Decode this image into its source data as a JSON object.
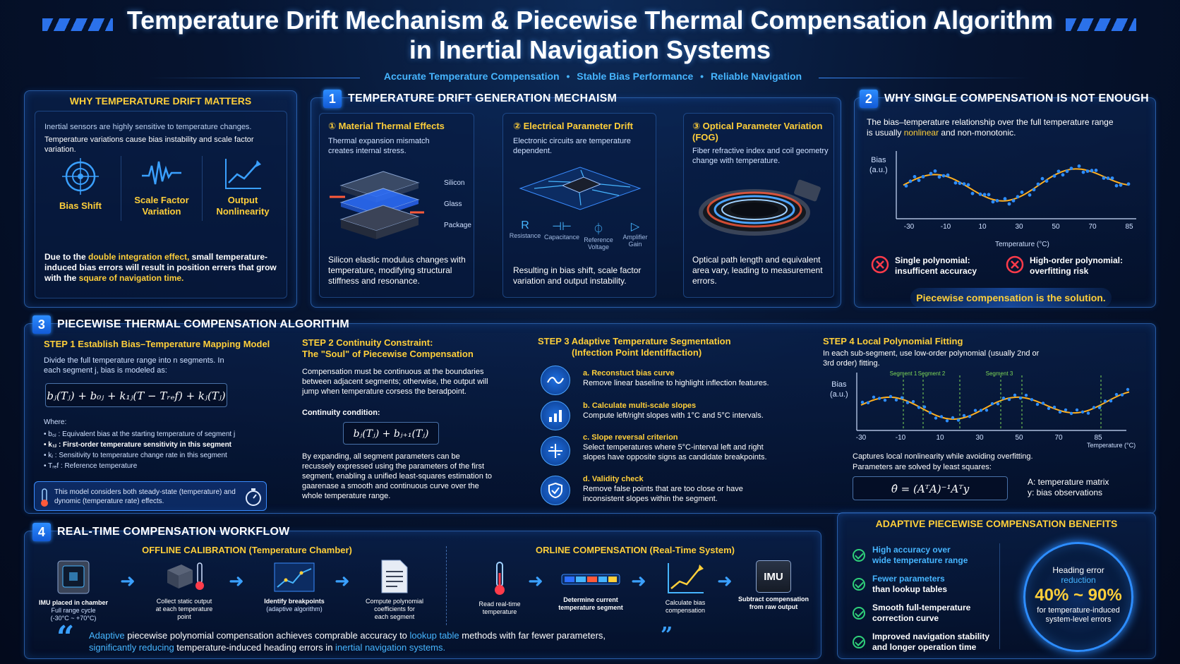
{
  "header": {
    "title_line1": "Temperature Drift Mechanism & Piecewise Thermal Compensation Algorithm",
    "title_line2": "in Inertial Navigation Systems",
    "subtitle": [
      "Accurate Temperature Compensation",
      "Stable Bias Performance",
      "Reliable Navigation"
    ]
  },
  "why_matters": {
    "title": "WHY TEMPERATURE DRIFT MATTERS",
    "intro": "Inertial sensors are highly sensitive to temperature changes.",
    "intro2": "Temperature variations cause bias instability and scale factor variation.",
    "items": [
      {
        "label": "Bias Shift",
        "icon": "target-icon"
      },
      {
        "label": "Scale Factor Variation",
        "icon": "waveform-icon"
      },
      {
        "label": "Output Nonlinearity",
        "icon": "trend-chart-icon"
      }
    ],
    "note_pre": "Due to the ",
    "note_hl1": "double integration effect,",
    "note_mid": " small temperature-induced bias errors will result in position errers that grow with the ",
    "note_hl2": "square of navigation time."
  },
  "section1": {
    "num": "1",
    "title": "TEMPERATURE DRIFT GENERATION MECHAISM",
    "cards": [
      {
        "title": "① Material Thermal Effects",
        "desc": "Thermal expansion mismatch creates internal stress.",
        "layers": [
          "Silicon",
          "Glass",
          "Package"
        ],
        "foot": "Silicon elastic modulus changes with temperature, modifying structural stiffness and resonance."
      },
      {
        "title": "② Electrical Parameter Drift",
        "desc": "Electronic circuits are temperature dependent.",
        "components": [
          "Resistance",
          "Capacitance",
          "Reference Voltage",
          "Amplifier Gain"
        ],
        "foot": "Resulting in bias shift, scale factor variation and output instability."
      },
      {
        "title": "③ Optical Parameter Variation (FOG)",
        "desc": "Fiber refractive index and coil geometry change with temperature.",
        "foot": "Optical path length and equivalent area vary, leading to measurement errors."
      }
    ]
  },
  "section2": {
    "num": "2",
    "title": "WHY SINGLE COMPENSATION IS NOT ENOUGH",
    "desc_pre": "The bias–temperature relationship over the full temperature range is usually ",
    "desc_hl": "nonlinear",
    "desc_post": " and non-monotonic.",
    "ylabel": "Bias\n(a.u.)",
    "xlabel": "Temperature (°C)",
    "xticks": [
      "-30",
      "-10",
      "10",
      "30",
      "50",
      "70",
      "85"
    ],
    "fail1": "Single polynomial: insufficent accuracy",
    "fail2": "High-order polynomial: overfitting risk",
    "solution": "Piecewise compensation is the solution."
  },
  "section3": {
    "num": "3",
    "title": "PIECEWISE THERMAL COMPENSATION ALGORITHM",
    "step1": {
      "tag": "STEP 1",
      "title": "Establish Bias–Temperature Mapping Model",
      "desc": "Divide the full temperature range into n segments. In each segment j, bias is modeled as:",
      "formula": "bⱼ(Tⱼ) + b₀ⱼ + k₁ⱼ(T − Tᵣₑf) + kⱼ(Tⱼ)",
      "where": "Where:",
      "defs": [
        "b₀ⱼ : Equivalent bias at the starting temperature of segment j",
        "k₁ⱼ : First-order temperature sensitivity in this segment",
        "kⱼ : Sensitivity to temperature change rate in this segment",
        "Tᵣₑf : Reference temperature"
      ],
      "note": "This model considers both steady-state (temperature) and dynomic (temperature rate) effects."
    },
    "step2": {
      "tag": "STEP 2",
      "title1": "Continuity Constraint:",
      "title2": "The \"Soul\" of Piecewise Compensation",
      "desc": "Compensation must be continuous at the boundaries between adjacent segments; otherwise, the output will jump when temperature corsess the beradpoint.",
      "cond_label": "Continuity condition:",
      "formula": "bⱼ(Tⱼ) + bⱼ₊₁(Tⱼ)",
      "foot": "By expanding, all segment parameters can be recussely expressed using the parameters of the first segment, enabling a unified least-squares estimation to gaarenase a smooth and continuous curve over the whole temperature range."
    },
    "step3": {
      "tag": "STEP 3",
      "title": "Adaptive Temperature Segmentation",
      "subtitle": "(Infection Point Identiffaction)",
      "items": [
        {
          "title": "a. Reconstuct bias curve",
          "desc": "Remove linear baseline to highlight inflection features."
        },
        {
          "title": "b. Calculate multi-scale slopes",
          "desc": "Compute left/right slopes with 1°C and 5°C intervals."
        },
        {
          "title": "c. Slope reversal criterion",
          "desc": "Select temperatures where 5°C-interval left and right slopes have opposite signs as candidate breakpoints."
        },
        {
          "title": "d. Validity check",
          "desc": "Remove false points that are too close or have inconsistent slopes within the segment."
        }
      ]
    },
    "step4": {
      "tag": "STEP 4",
      "title": "Local Polynomial Fitting",
      "desc": "In each sub-segment, use low-order polynomial (usually 2nd or 3rd order) fitting.",
      "ylabel": "Bias\n(a.u.)",
      "xlabel": "Temperature (°C)",
      "seg_labels": [
        "Segment 1",
        "Segment 2",
        "Segment 3"
      ],
      "xticks": [
        "-30",
        "-10",
        "10",
        "30",
        "50",
        "70",
        "85"
      ],
      "foot1": "Captures local nonlinearity while avoiding overfitting.",
      "foot2": "Parameters are solved by least squares:",
      "formula": "θ̂ = (AᵀA)⁻¹Aᵀy",
      "legend1": "A: temperature matrix",
      "legend2": "y: bias observations"
    }
  },
  "section4": {
    "num": "4",
    "title": "REAL-TIME COMPENSATION WORKFLOW",
    "offline_title": "OFFLINE CALIBRATION (Temperature Chamber)",
    "online_title": "ORLINE COMPENSATION (Real-Time System)",
    "offline_steps": [
      {
        "label": "IMU placed in chamber",
        "sub": "Full range cycle\n(-30°C ~ +70°C)"
      },
      {
        "label": "Collect static output\nat each temperature\npoint",
        "sub": ""
      },
      {
        "label": "Identify breakpoints",
        "sub": "(adaptive algorithm)"
      },
      {
        "label": "Compute polynomial\ncoefficients for\neach segment",
        "sub": ""
      }
    ],
    "online_steps": [
      {
        "label": "Read real-time\ntemperature"
      },
      {
        "label": "Determine current\ntemperature segment"
      },
      {
        "label": "Calculate bias\ncompensation"
      },
      {
        "label": "Subtract compensation\nfrom raw output"
      }
    ],
    "imu_label": "IMU",
    "quote_pre": "Adaptive",
    "quote_a": " piecewise polynomial compensation achieves comprable accuracy to ",
    "quote_b": "lookup table",
    "quote_c": " methods with far fewer parameters,",
    "quote_d": "significantly reducing",
    "quote_e": " temperature-induced heading errors in ",
    "quote_f": "inertial navigation systems."
  },
  "benefits": {
    "title": "ADAPTIVE PIECEWISE COMPENSATION BENEFITS",
    "items": [
      {
        "l1": "High accuracy over",
        "l2": "wide temperature range"
      },
      {
        "l1": "Fewer parameters",
        "l2": "than lookup tables"
      },
      {
        "l1": "Smooth full-temperature",
        "l2": "correction curve"
      },
      {
        "l1": "Improved navigation stability",
        "l2": "and longer operation time"
      }
    ],
    "ring_label1": "Heading error",
    "ring_label2": "reduction",
    "ring_value": "40% ~ 90%",
    "ring_foot": "for temperature-induced system-level errors"
  },
  "colors": {
    "accent_yellow": "#ffcf3a",
    "accent_blue": "#46b5ff",
    "bg": "#061430",
    "fail_red": "#ff3b4a",
    "ok_green": "#2fd07a"
  }
}
